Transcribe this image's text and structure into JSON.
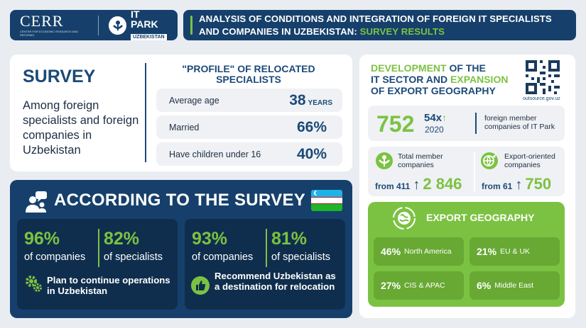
{
  "header": {
    "logo1": "CERR",
    "logo1_sub": "CENTER FOR ECONOMIC RESEARCH AND REFORMS",
    "logo2": "IT PARK",
    "logo2_sub": "UZBEKISTAN",
    "title_part1": "ANALYSIS OF CONDITIONS AND INTEGRATION OF FOREIGN IT SPECIALISTS",
    "title_part2": "AND COMPANIES IN UZBEKISTAN:",
    "title_part3": "SURVEY RESULTS"
  },
  "survey": {
    "heading": "SURVEY",
    "text": "Among foreign specialists and foreign companies in Uzbekistan",
    "profile_heading": "\"PROFILE\" OF RELOCATED SPECIALISTS",
    "rows": [
      {
        "label": "Average age",
        "value": "38",
        "unit": "YEARS"
      },
      {
        "label": "Married",
        "value": "66%",
        "unit": ""
      },
      {
        "label": "Have children under 16",
        "value": "40%",
        "unit": ""
      }
    ]
  },
  "according": {
    "heading": "ACCORDING TO THE SURVEY",
    "blocks": [
      {
        "pct1": "96%",
        "sub1": "of companies",
        "pct2": "82%",
        "sub2": "of specialists",
        "footer": "Plan to continue operations in Uzbekistan"
      },
      {
        "pct1": "93%",
        "sub1": "of companies",
        "pct2": "81%",
        "sub2": "of specialists",
        "footer": "Recommend Uzbekistan as a destination for relocation"
      }
    ]
  },
  "development": {
    "h1": "DEVELOPMENT",
    "h2": "OF THE",
    "h3": "IT SECTOR AND",
    "h4": "EXPANSION",
    "h5": "OF EXPORT GEOGRAPHY",
    "qr_source": "outsource.gov.uz",
    "members": {
      "value": "752",
      "multiplier": "54x",
      "year": "2020",
      "label": "foreign member companies of IT Park"
    },
    "total": {
      "label": "Total member companies",
      "from": "from 411",
      "to": "2 846"
    },
    "export": {
      "label": "Export-oriented companies",
      "from": "from 61",
      "to": "750"
    }
  },
  "geography": {
    "heading": "EXPORT GEOGRAPHY",
    "tiles": [
      {
        "pct": "46%",
        "region": "North America"
      },
      {
        "pct": "21%",
        "region": "EU & UK"
      },
      {
        "pct": "27%",
        "region": "CIS & APAC"
      },
      {
        "pct": "6%",
        "region": "Middle East"
      }
    ]
  },
  "colors": {
    "navy": "#16406b",
    "green": "#7cc242",
    "dark_green": "#67a933"
  }
}
